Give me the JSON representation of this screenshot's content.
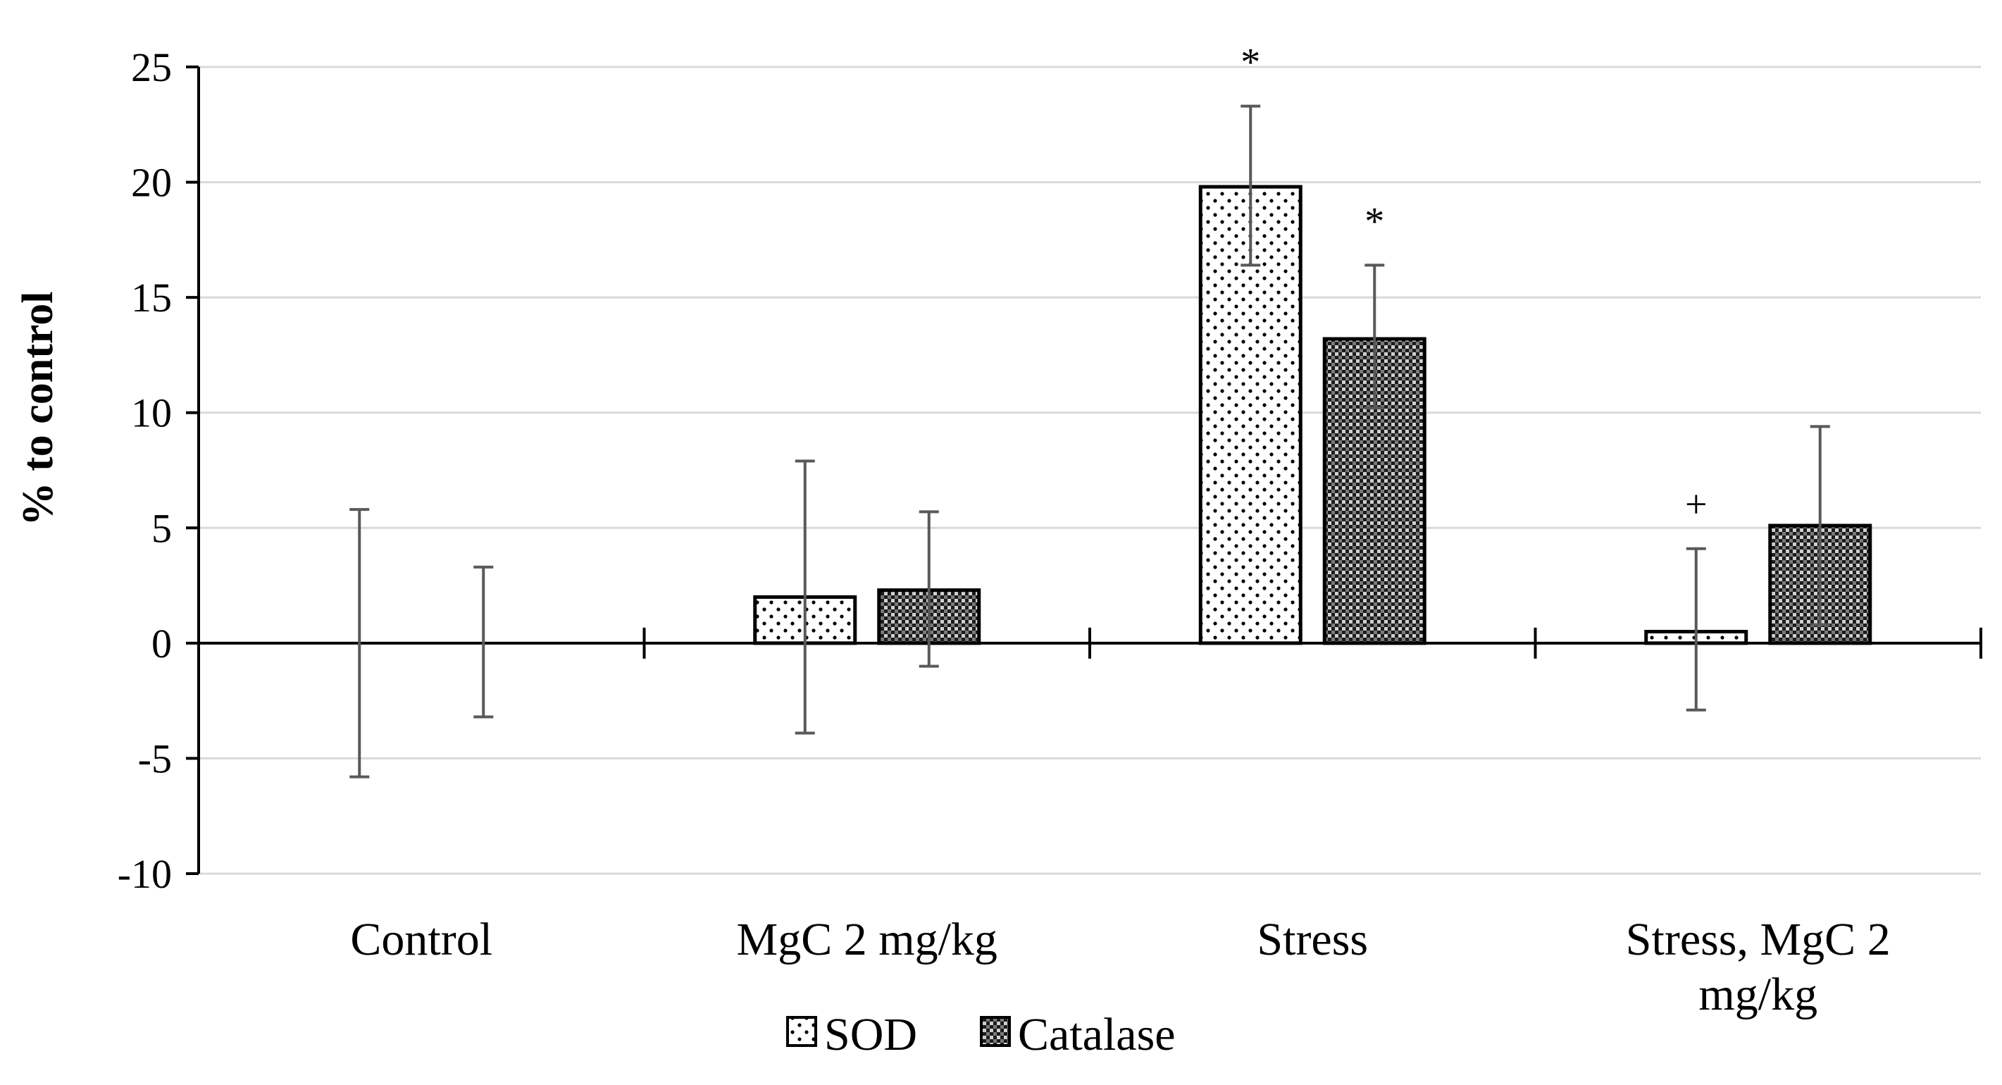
{
  "chart_data": {
    "type": "bar",
    "title": "",
    "xlabel": "",
    "ylabel": "% to control",
    "ylim": [
      -10,
      25
    ],
    "yticks": [
      25,
      20,
      15,
      10,
      5,
      0,
      -5,
      -10
    ],
    "ytick_labels": [
      "25",
      "20",
      "15",
      "10",
      "5",
      "0",
      "-5",
      "-10"
    ],
    "grid": true,
    "legend_position": "bottom-center",
    "categories": [
      "Control",
      "MgC 2 mg/kg",
      "Stress",
      "Stress, MgC 2 mg/kg"
    ],
    "category_label_lines": [
      [
        "Control"
      ],
      [
        "MgC 2 mg/kg"
      ],
      [
        "Stress"
      ],
      [
        "Stress, MgC 2",
        "mg/kg"
      ]
    ],
    "series": [
      {
        "name": "SOD",
        "pattern": "dots",
        "values": [
          0,
          2.0,
          19.8,
          0.5
        ],
        "error_upper": [
          5.8,
          7.9,
          23.3,
          4.1
        ],
        "error_lower": [
          -5.8,
          -3.9,
          16.4,
          -2.9
        ],
        "annotations": [
          "",
          "",
          "*",
          "+"
        ]
      },
      {
        "name": "Catalase",
        "pattern": "crosshatch",
        "values": [
          0,
          2.3,
          13.2,
          5.1
        ],
        "error_upper": [
          3.3,
          5.7,
          16.4,
          9.4
        ],
        "error_lower": [
          -3.2,
          -1.0,
          10.2,
          0.8
        ],
        "annotations": [
          "",
          "",
          "*",
          ""
        ]
      }
    ],
    "colors": {
      "axis": "#000000",
      "grid": "#d9d9d9",
      "error_bar": "#595959",
      "bar_stroke": "#000000",
      "bar_fill": "#ffffff",
      "pattern_fill": "#000000"
    }
  }
}
